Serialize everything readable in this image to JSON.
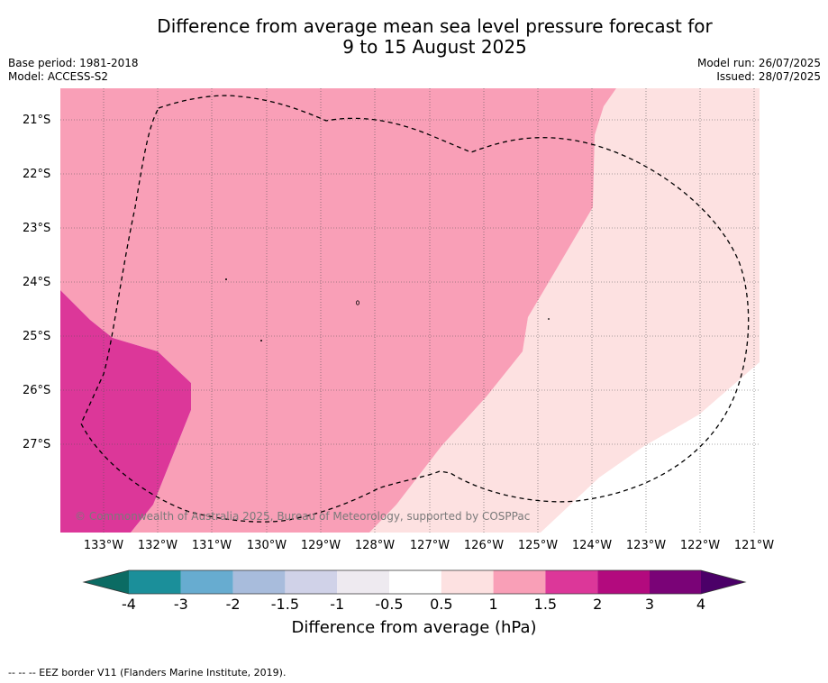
{
  "header": {
    "title_line1": "Difference from average mean sea level pressure forecast for",
    "title_line2": "9 to 15 August 2025",
    "base_period": "Base period: 1981-2018",
    "model": "Model: ACCESS-S2",
    "model_run": "Model run: 26/07/2025",
    "issued": "Issued: 28/07/2025"
  },
  "map": {
    "latitude_labels": [
      "21°S",
      "22°S",
      "23°S",
      "24°S",
      "25°S",
      "26°S",
      "27°S"
    ],
    "longitude_labels": [
      "133°W",
      "132°W",
      "131°W",
      "130°W",
      "129°W",
      "128°W",
      "127°W",
      "126°W",
      "125°W",
      "124°W",
      "123°W",
      "122°W",
      "121°W"
    ],
    "copyright": "© Commonwealth of Australia 2025, Bureau of Meteorology, supported by COSPPac",
    "region_colors": {
      "1.5_to_2": "#dc3799",
      "1_to_1.5": "#f99fb7",
      "0.5_to_1": "#fde1e1",
      "background": "#ffffff"
    }
  },
  "colorbar": {
    "title": "Difference from average (hPa)",
    "tick_labels": [
      "-4",
      "-3",
      "-2",
      "-1.5",
      "-1",
      "-0.5",
      "0.5",
      "1",
      "1.5",
      "2",
      "3",
      "4"
    ],
    "colors": [
      "#0b6b63",
      "#1b8f9a",
      "#67acd0",
      "#a8bcdc",
      "#d0d2e8",
      "#eeeaf0",
      "#ffffff",
      "#fde1e1",
      "#f99fb7",
      "#dc3799",
      "#b30a7e",
      "#7a0377",
      "#4b0068"
    ]
  },
  "footnote": "-- -- -- EEZ border V11 (Flanders Marine Institute, 2019)."
}
